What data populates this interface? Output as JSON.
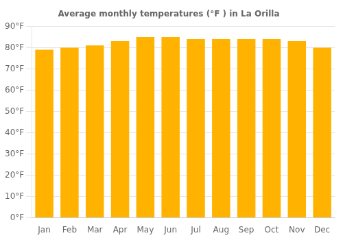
{
  "chart_data": {
    "type": "bar",
    "title": "Average monthly temperatures (°F ) in La Orilla",
    "categories": [
      "Jan",
      "Feb",
      "Mar",
      "Apr",
      "May",
      "Jun",
      "Jul",
      "Aug",
      "Sep",
      "Oct",
      "Nov",
      "Dec"
    ],
    "values": [
      79,
      80,
      81,
      83,
      85,
      85,
      84,
      84,
      84,
      84,
      83,
      80
    ],
    "color": "#FFB300",
    "ylim": [
      0,
      90
    ],
    "yticks": [
      {
        "value": 0,
        "label": "0°F"
      },
      {
        "value": 10,
        "label": "10°F"
      },
      {
        "value": 20,
        "label": "20°F"
      },
      {
        "value": 30,
        "label": "30°F"
      },
      {
        "value": 40,
        "label": "40°F"
      },
      {
        "value": 50,
        "label": "50°F"
      },
      {
        "value": 60,
        "label": "60°F"
      },
      {
        "value": 70,
        "label": "70°F"
      },
      {
        "value": 80,
        "label": "80°F"
      },
      {
        "value": 90,
        "label": "90°F"
      }
    ],
    "grid": true
  }
}
